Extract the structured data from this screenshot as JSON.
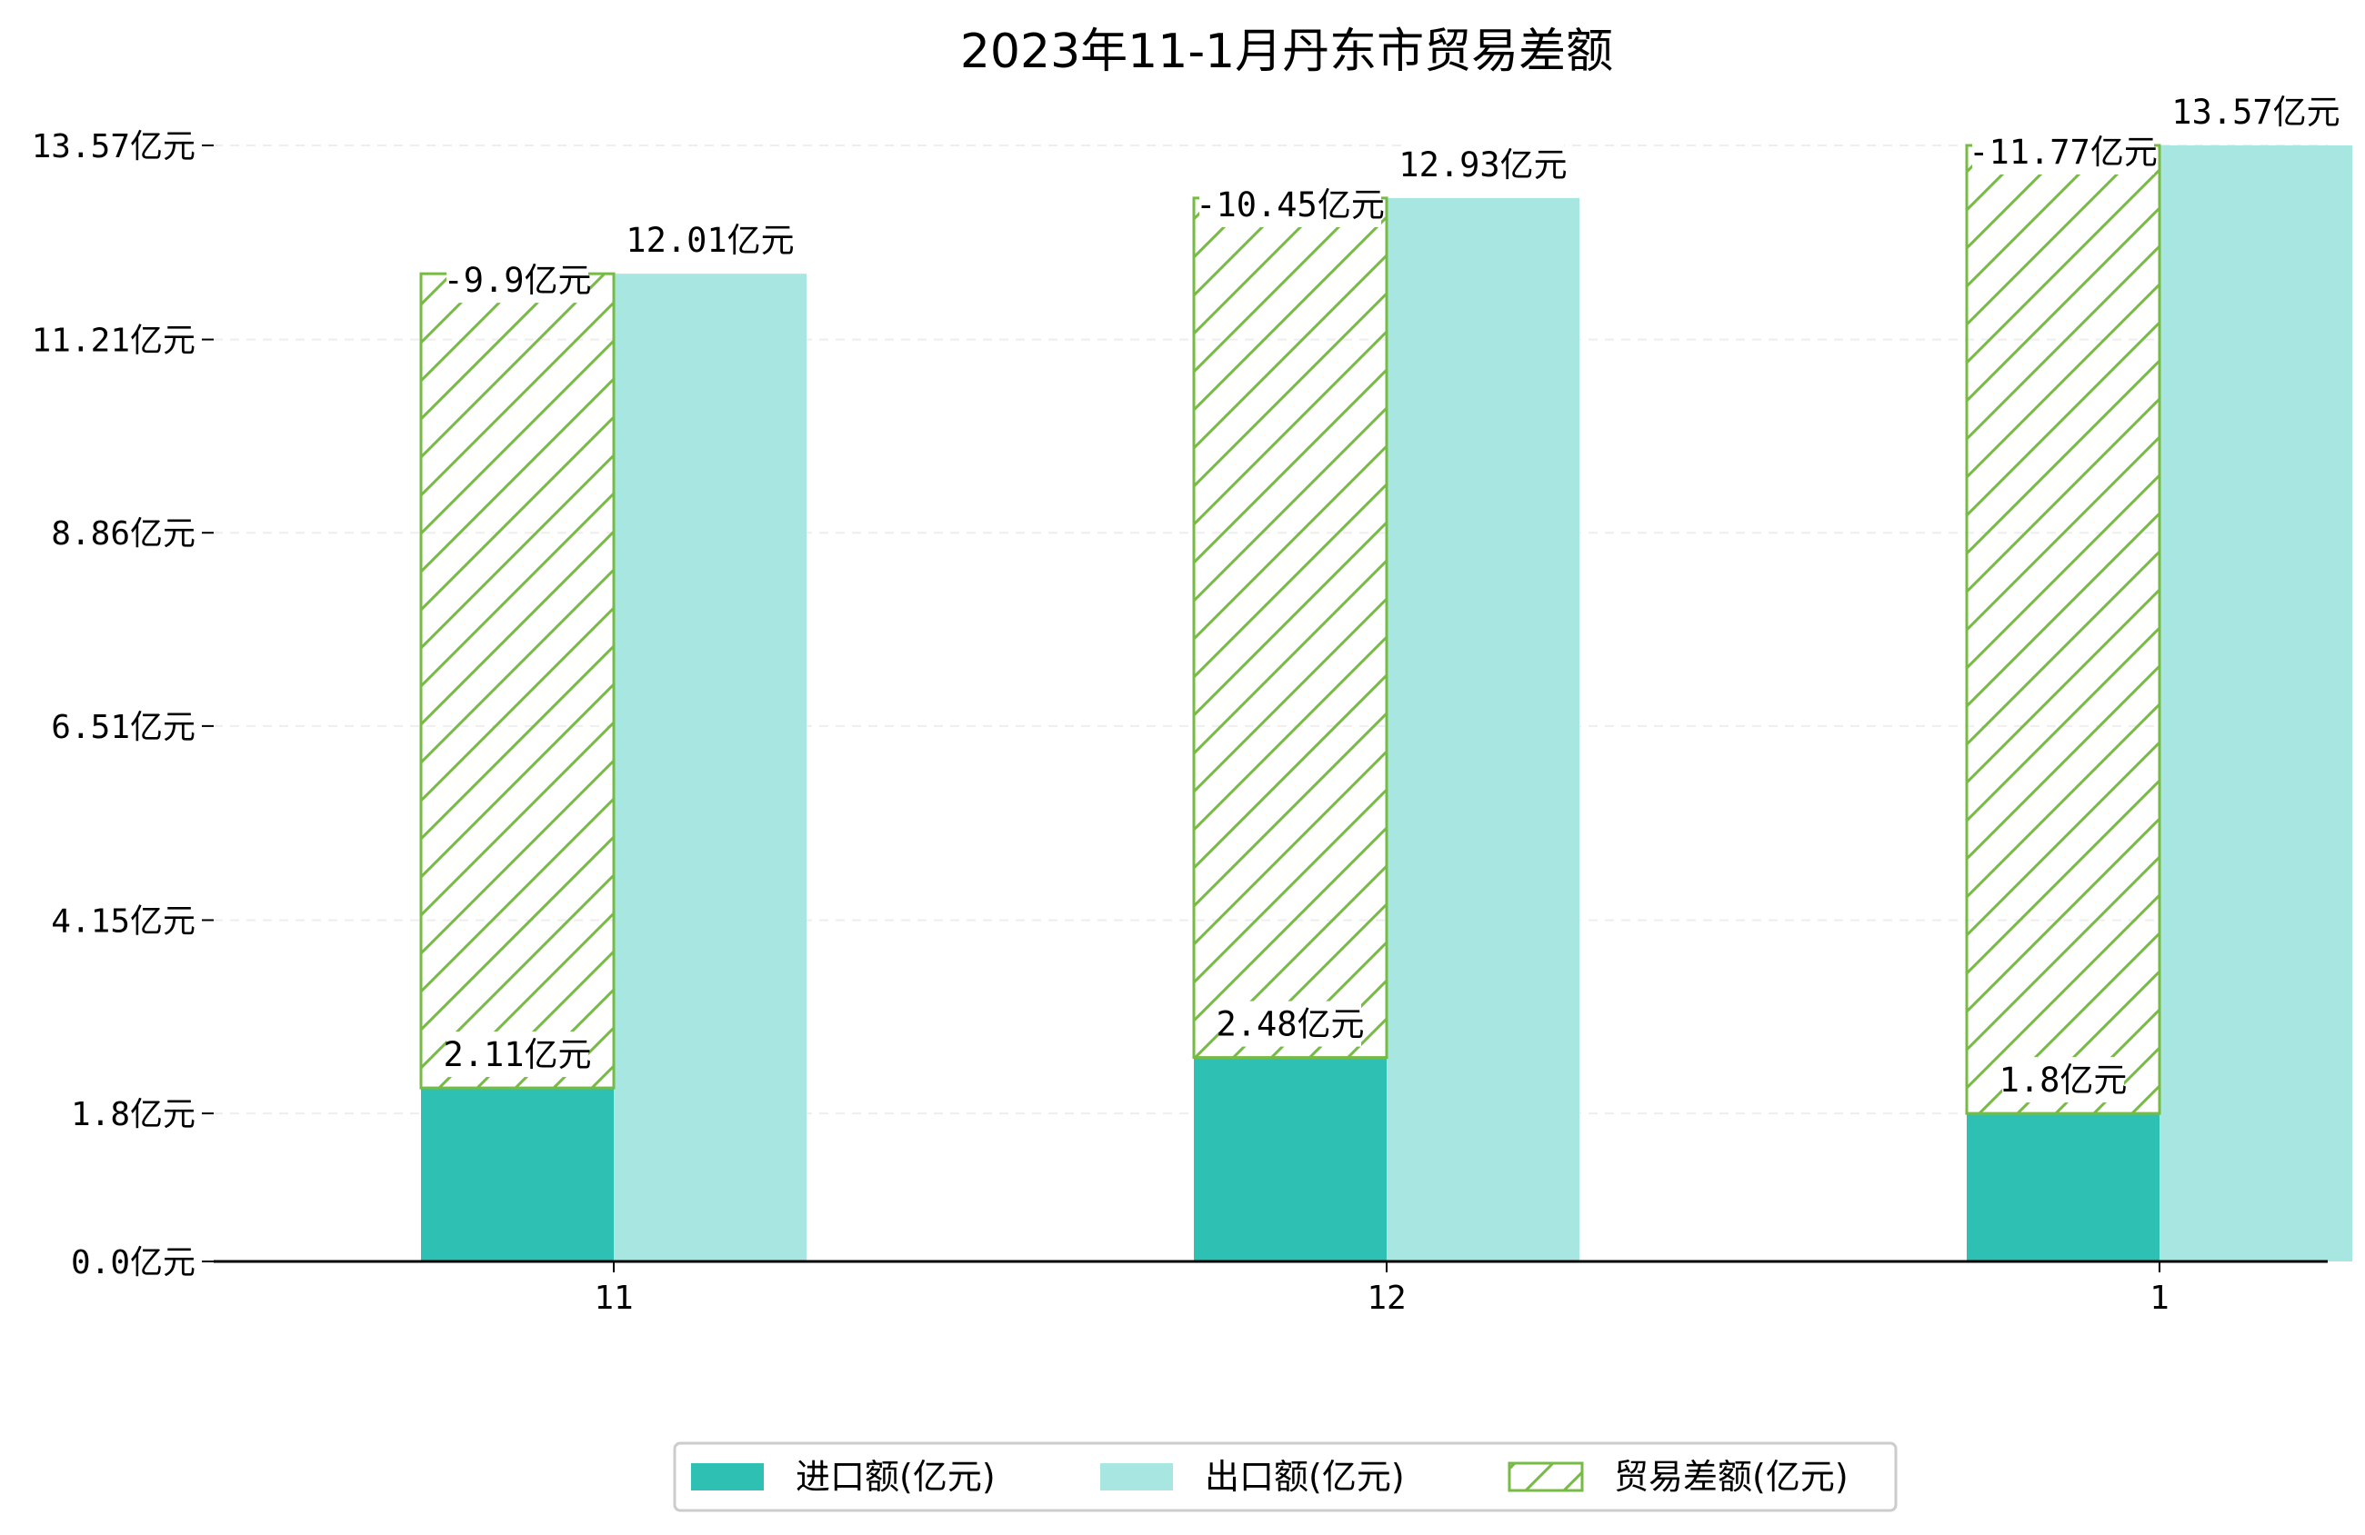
{
  "chart_data": {
    "type": "bar",
    "title": "2023年11-1月丹东市贸易差额",
    "unit": "亿元",
    "categories": [
      "11",
      "12",
      "1"
    ],
    "series": [
      {
        "name": "进口额(亿元)",
        "values": [
          2.11,
          2.48,
          1.8
        ],
        "labels": [
          "2.11亿元",
          "2.48亿元",
          "1.8亿元"
        ],
        "color": "#2ec0b2",
        "style": "solid"
      },
      {
        "name": "出口额(亿元)",
        "values": [
          12.01,
          12.93,
          13.57
        ],
        "labels": [
          "12.01亿元",
          "12.93亿元",
          "13.57亿元"
        ],
        "color": "#a8e6e1",
        "style": "solid"
      },
      {
        "name": "贸易差额(亿元)",
        "values": [
          -9.9,
          -10.45,
          -11.77
        ],
        "labels": [
          "-9.9亿元",
          "-10.45亿元",
          "-11.77亿元"
        ],
        "color": "#77bb44",
        "style": "hatched"
      }
    ],
    "yticks": [
      0.0,
      1.8,
      4.15,
      6.51,
      8.86,
      11.21,
      13.57
    ],
    "ytick_labels": [
      "0.0亿元",
      "1.8亿元",
      "4.15亿元",
      "6.51亿元",
      "8.86亿元",
      "11.21亿元",
      "13.57亿元"
    ],
    "ylim": [
      0,
      13.57
    ],
    "grid": true,
    "legend_position": "bottom-center"
  }
}
